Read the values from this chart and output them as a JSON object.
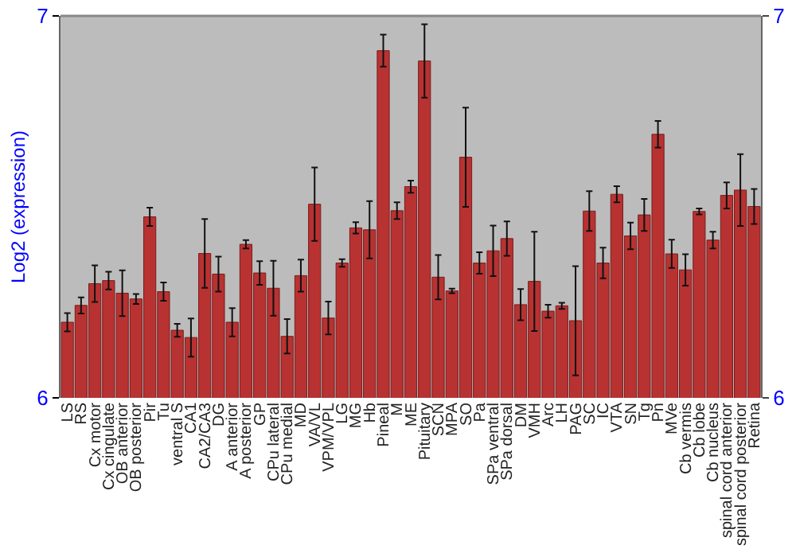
{
  "chart_data": {
    "type": "bar",
    "ylabel": "Log2 (expression)",
    "categories": [
      "LS",
      "RS",
      "Cx motor",
      "Cx cingulate",
      "OB anterior",
      "OB posterior",
      "Pir",
      "Tu",
      "ventral S",
      "CA1",
      "CA2/CA3",
      "DG",
      "A anterior",
      "A posterior",
      "GP",
      "CPu lateral",
      "CPu medial",
      "MD",
      "VA/VL",
      "VPM/VPL",
      "LG",
      "MG",
      "Hb",
      "Pineal",
      "M",
      "ME",
      "Pituitary",
      "SCN",
      "MPA",
      "SO",
      "Pa",
      "SPa ventral",
      "SPa dorsal",
      "DM",
      "VMH",
      "Arc",
      "LH",
      "PAG",
      "SC",
      "IC",
      "VTA",
      "SN",
      "Tg",
      "Pn",
      "MVe",
      "Cb vermis",
      "Cb lobe",
      "Cb nucleus",
      "spinal cord anterior",
      "spinal cord posterior",
      "Retina"
    ],
    "values": [
      6.198,
      6.242,
      6.299,
      6.307,
      6.274,
      6.259,
      6.474,
      6.278,
      6.177,
      6.158,
      6.378,
      6.324,
      6.198,
      6.402,
      6.327,
      6.287,
      6.161,
      6.32,
      6.507,
      6.209,
      6.353,
      6.445,
      6.44,
      6.909,
      6.49,
      6.553,
      6.882,
      6.316,
      6.28,
      6.63,
      6.353,
      6.385,
      6.417,
      6.244,
      6.305,
      6.227,
      6.241,
      6.202,
      6.489,
      6.353,
      6.533,
      6.424,
      6.479,
      6.69,
      6.377,
      6.335,
      6.488,
      6.413,
      6.53,
      6.544,
      6.501
    ],
    "errors": [
      0.024,
      0.021,
      0.048,
      0.023,
      0.06,
      0.013,
      0.024,
      0.024,
      0.017,
      0.05,
      0.09,
      0.046,
      0.037,
      0.011,
      0.031,
      0.072,
      0.045,
      0.042,
      0.096,
      0.043,
      0.01,
      0.015,
      0.075,
      0.042,
      0.022,
      0.016,
      0.096,
      0.058,
      0.006,
      0.13,
      0.028,
      0.066,
      0.045,
      0.041,
      0.13,
      0.017,
      0.008,
      0.143,
      0.052,
      0.04,
      0.021,
      0.035,
      0.042,
      0.035,
      0.037,
      0.041,
      0.008,
      0.022,
      0.034,
      0.094,
      0.046
    ],
    "color": "#b83232",
    "ylim": [
      6,
      7
    ],
    "yticks": [
      6,
      7
    ],
    "y2lim": [
      6,
      7
    ],
    "y2ticks": [
      6,
      7
    ]
  }
}
